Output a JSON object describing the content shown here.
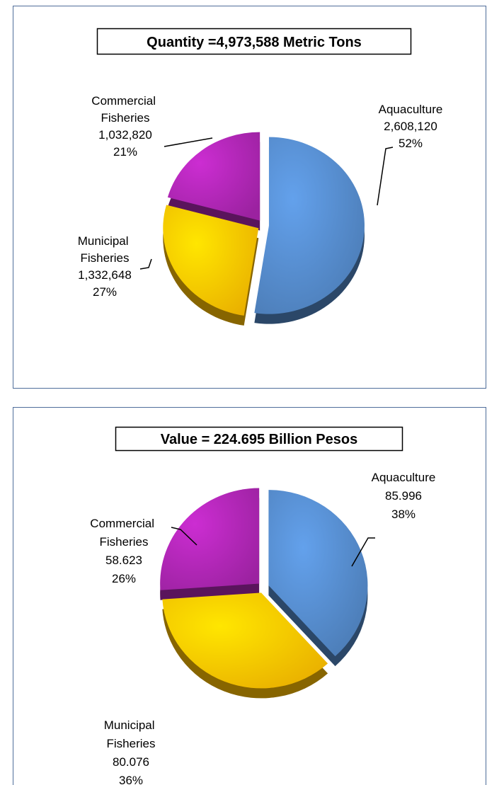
{
  "chart_data": [
    {
      "type": "pie",
      "title": "Quantity =4,973,588  Metric Tons",
      "categories": [
        "Aquaculture",
        "Municipal Fisheries",
        "Commercial Fisheries"
      ],
      "values": [
        2608120,
        1332648,
        1032820
      ],
      "value_labels": [
        "2,608,120",
        "1,332,648",
        "1,032,820"
      ],
      "percent_labels": [
        "52%",
        "27%",
        "21%"
      ],
      "colors": [
        "#4f81bd",
        "#f5b800",
        "#a324a8"
      ]
    },
    {
      "type": "pie",
      "title": "Value = 224.695  Billion Pesos",
      "categories": [
        "Aquaculture",
        "Municipal Fisheries",
        "Commercial Fisheries"
      ],
      "values": [
        85.996,
        80.076,
        58.623
      ],
      "percent_labels": [
        "38%",
        "36%",
        "26%"
      ],
      "colors": [
        "#4f81bd",
        "#f5b800",
        "#a324a8"
      ]
    }
  ]
}
